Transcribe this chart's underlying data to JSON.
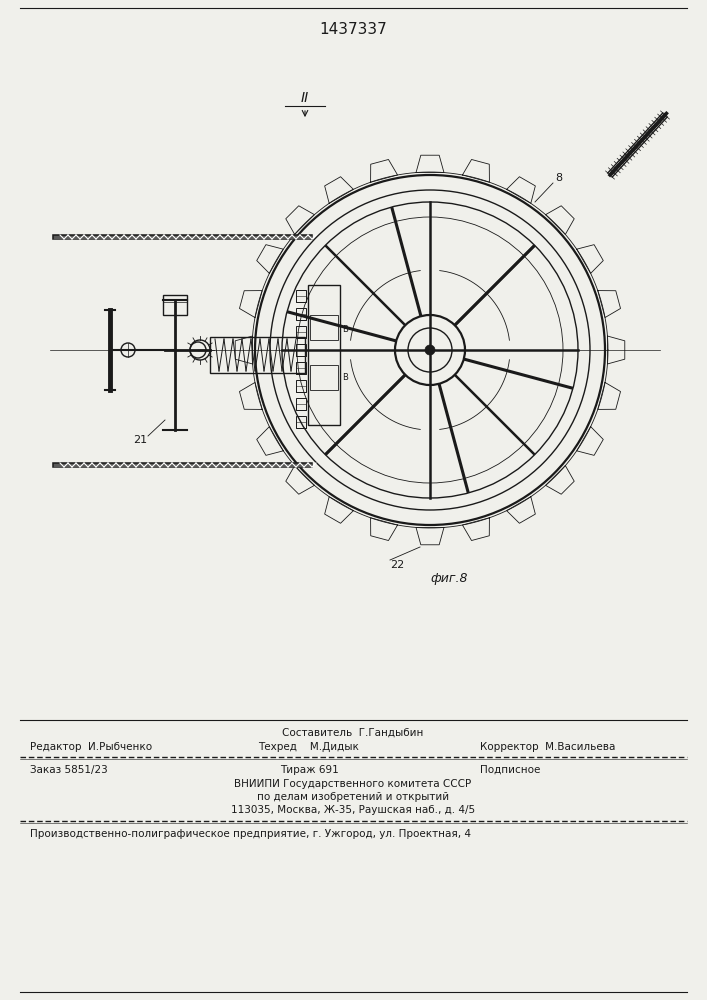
{
  "patent_number": "1437337",
  "bg_color": "#f0f0eb",
  "drawing_color": "#1a1a1a",
  "label_II": "II",
  "label_8": "8",
  "label_21": "21",
  "label_22": "22",
  "label_fig": "фиг.8",
  "footer_line1_left": "Редактор  И.Рыбченко",
  "footer_line1_center": "Составитель  Г.Гандыбин",
  "footer_line1_right": "Корректор  М.Васильева",
  "footer_techred": "Техред    М.Дидык",
  "footer_line2_left": "Заказ 5851/23",
  "footer_line2_center": "Тираж 691",
  "footer_line2_right": "Подписное",
  "footer_line3": "ВНИИПИ Государственного комитета СССР",
  "footer_line4": "по делам изобретений и открытий",
  "footer_line5": "113035, Москва, Ж-35, Раушская наб., д. 4/5",
  "footer_line6": "Производственно-полиграфическое предприятие, г. Ужгород, ул. Проектная, 4"
}
